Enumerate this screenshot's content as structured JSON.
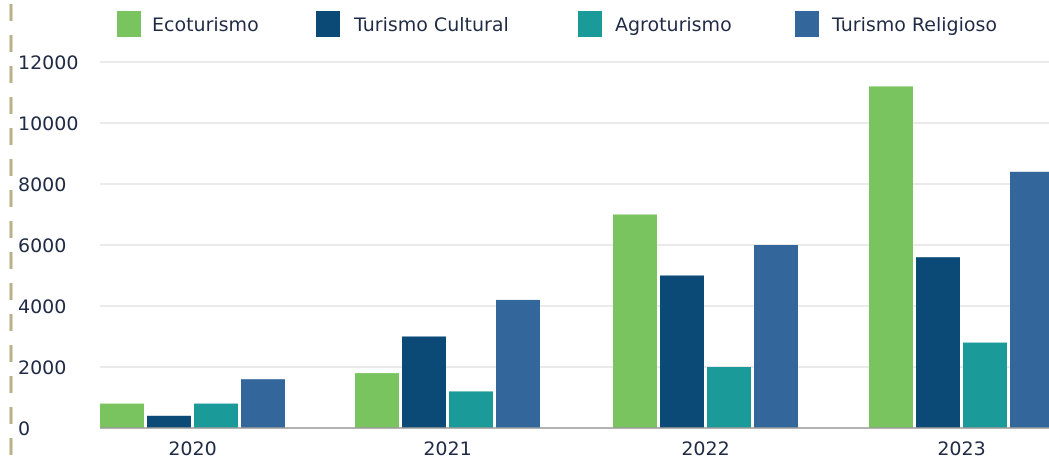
{
  "chart_data": {
    "type": "bar",
    "categories": [
      "2020",
      "2021",
      "2022",
      "2023"
    ],
    "series": [
      {
        "name": "Ecoturismo",
        "color": "#7ac45f",
        "values": [
          800,
          1800,
          7000,
          11200
        ]
      },
      {
        "name": "Turismo Cultural",
        "color": "#0b4a77",
        "values": [
          400,
          3000,
          5000,
          5600
        ]
      },
      {
        "name": "Agroturismo",
        "color": "#1a9a98",
        "values": [
          800,
          1200,
          2000,
          2800
        ]
      },
      {
        "name": "Turismo Religioso",
        "color": "#33679c",
        "values": [
          1600,
          4200,
          6000,
          8400
        ]
      }
    ],
    "yticks": [
      "0",
      "2000",
      "4000",
      "6000",
      "8000",
      "10000",
      "12000"
    ],
    "ylim": [
      0,
      12000
    ],
    "grid": true,
    "legend": "top"
  }
}
